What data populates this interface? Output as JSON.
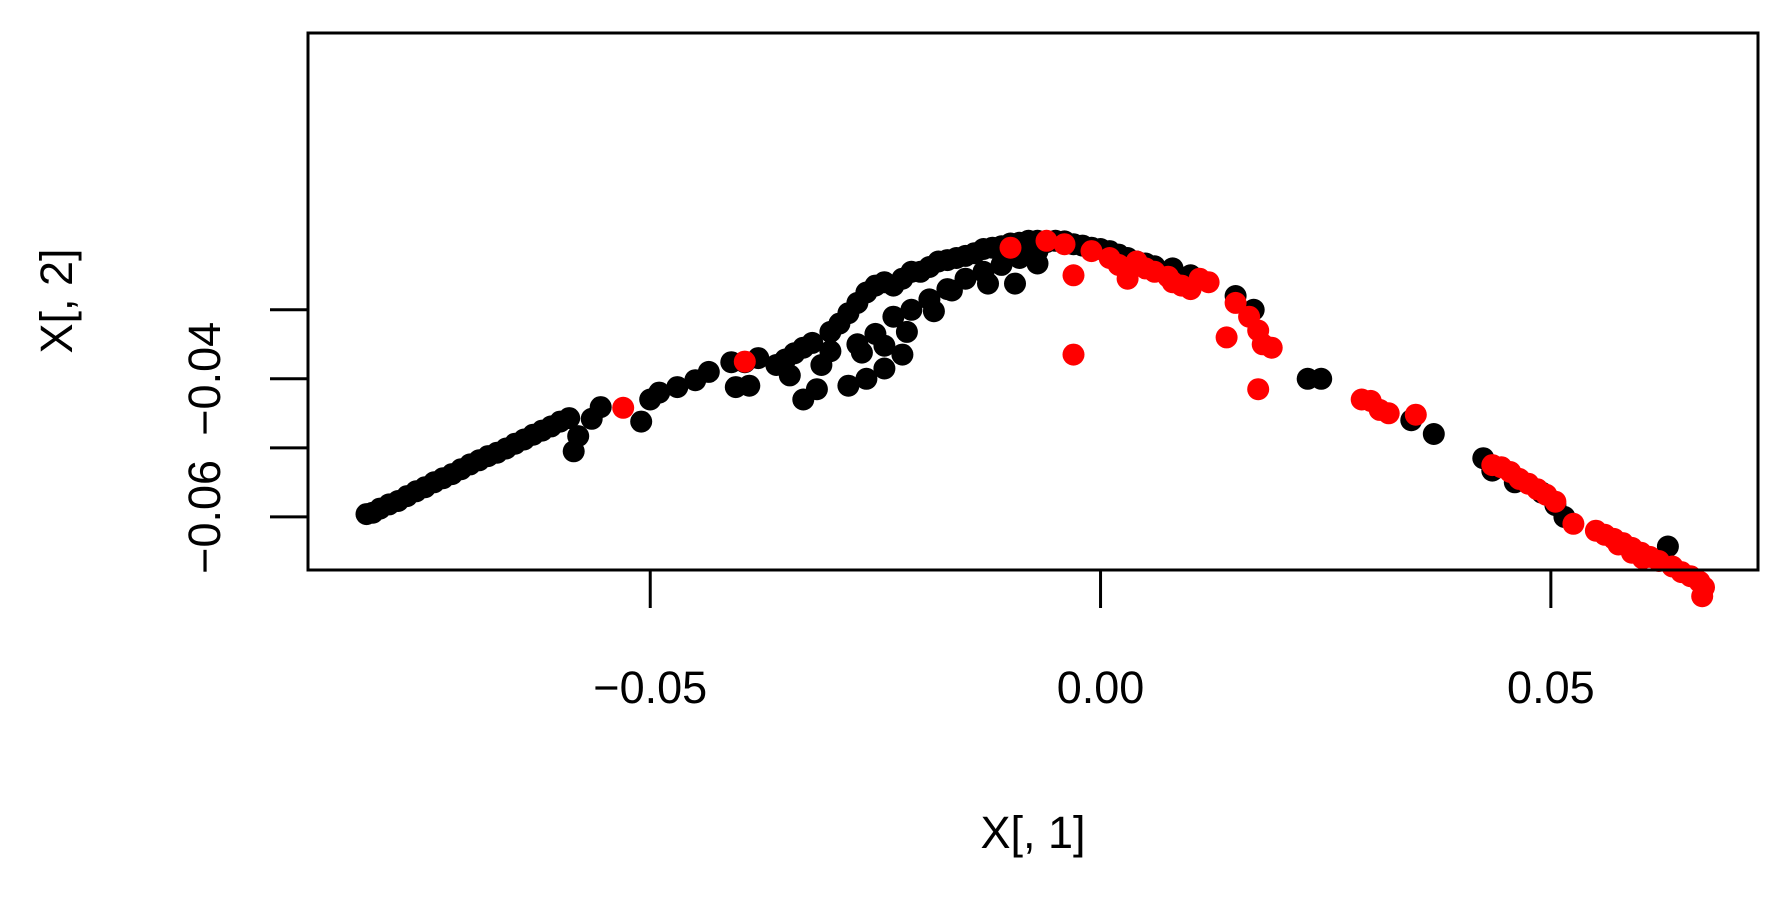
{
  "chart_data": {
    "type": "scatter",
    "title": "",
    "xlabel": "X[, 1]",
    "ylabel": "X[, 2]",
    "xlim": [
      -0.088,
      0.073
    ],
    "ylim": [
      -0.0677,
      0.0101
    ],
    "x_ticks": [
      {
        "value": -0.05,
        "label": "−0.05"
      },
      {
        "value": 0.0,
        "label": "0.00"
      },
      {
        "value": 0.05,
        "label": "0.05"
      }
    ],
    "y_ticks": [
      {
        "value": -0.06,
        "label": "−0.06"
      },
      {
        "value": -0.05,
        "label": ""
      },
      {
        "value": -0.04,
        "label": "−0.04"
      },
      {
        "value": -0.03,
        "label": ""
      }
    ],
    "grid": false,
    "legend": "none",
    "series": [
      {
        "color": "#000000",
        "points": [
          [
            -0.0815,
            -0.0596
          ],
          [
            -0.0808,
            -0.0594
          ],
          [
            -0.08,
            -0.0588
          ],
          [
            -0.079,
            -0.0582
          ],
          [
            -0.078,
            -0.0577
          ],
          [
            -0.077,
            -0.057
          ],
          [
            -0.076,
            -0.0563
          ],
          [
            -0.075,
            -0.0557
          ],
          [
            -0.074,
            -0.055
          ],
          [
            -0.073,
            -0.0544
          ],
          [
            -0.072,
            -0.0538
          ],
          [
            -0.071,
            -0.0531
          ],
          [
            -0.07,
            -0.0524
          ],
          [
            -0.069,
            -0.0518
          ],
          [
            -0.068,
            -0.0512
          ],
          [
            -0.067,
            -0.0507
          ],
          [
            -0.066,
            -0.0501
          ],
          [
            -0.065,
            -0.0494
          ],
          [
            -0.064,
            -0.0488
          ],
          [
            -0.063,
            -0.0481
          ],
          [
            -0.062,
            -0.0475
          ],
          [
            -0.061,
            -0.0469
          ],
          [
            -0.06,
            -0.0462
          ],
          [
            -0.059,
            -0.0457
          ],
          [
            -0.0585,
            -0.0505
          ],
          [
            -0.058,
            -0.0483
          ],
          [
            -0.0565,
            -0.0458
          ],
          [
            -0.0555,
            -0.0441
          ],
          [
            -0.051,
            -0.0462
          ],
          [
            -0.05,
            -0.043
          ],
          [
            -0.049,
            -0.042
          ],
          [
            -0.047,
            -0.0412
          ],
          [
            -0.045,
            -0.0402
          ],
          [
            -0.0435,
            -0.039
          ],
          [
            -0.041,
            -0.0376
          ],
          [
            -0.0405,
            -0.0412
          ],
          [
            -0.0395,
            -0.0376
          ],
          [
            -0.038,
            -0.037
          ],
          [
            -0.035,
            -0.0372
          ],
          [
            -0.034,
            -0.0363
          ],
          [
            -0.033,
            -0.0355
          ],
          [
            -0.032,
            -0.0348
          ],
          [
            -0.03,
            -0.0332
          ],
          [
            -0.029,
            -0.032
          ],
          [
            -0.028,
            -0.0305
          ],
          [
            -0.027,
            -0.029
          ],
          [
            -0.026,
            -0.0275
          ],
          [
            -0.025,
            -0.0265
          ],
          [
            -0.024,
            -0.026
          ],
          [
            -0.023,
            -0.0265
          ],
          [
            -0.022,
            -0.0255
          ],
          [
            -0.021,
            -0.0245
          ],
          [
            -0.02,
            -0.0245
          ],
          [
            -0.019,
            -0.0238
          ],
          [
            -0.018,
            -0.023
          ],
          [
            -0.017,
            -0.0228
          ],
          [
            -0.016,
            -0.0225
          ],
          [
            -0.015,
            -0.0222
          ],
          [
            -0.014,
            -0.0218
          ],
          [
            -0.013,
            -0.0212
          ],
          [
            -0.012,
            -0.021
          ],
          [
            -0.011,
            -0.0208
          ],
          [
            -0.01,
            -0.0204
          ],
          [
            -0.009,
            -0.0203
          ],
          [
            -0.008,
            -0.02
          ],
          [
            -0.007,
            -0.02
          ],
          [
            -0.006,
            -0.0202
          ],
          [
            -0.005,
            -0.02
          ],
          [
            -0.004,
            -0.0201
          ],
          [
            -0.003,
            -0.0205
          ],
          [
            -0.002,
            -0.0207
          ],
          [
            -0.001,
            -0.021
          ],
          [
            0.0,
            -0.0212
          ],
          [
            0.001,
            -0.0215
          ],
          [
            0.002,
            -0.022
          ],
          [
            0.003,
            -0.0225
          ],
          [
            0.004,
            -0.023
          ],
          [
            0.005,
            -0.0233
          ],
          [
            0.006,
            -0.0237
          ],
          [
            0.008,
            -0.024
          ],
          [
            0.01,
            -0.025
          ],
          [
            0.015,
            -0.028
          ],
          [
            0.017,
            -0.03
          ],
          [
            0.023,
            -0.04
          ],
          [
            0.0245,
            -0.04
          ],
          [
            0.0345,
            -0.046
          ],
          [
            0.037,
            -0.048
          ],
          [
            0.0425,
            -0.0515
          ],
          [
            0.0435,
            -0.0533
          ],
          [
            0.046,
            -0.055
          ],
          [
            0.049,
            -0.0565
          ],
          [
            0.0505,
            -0.0583
          ],
          [
            0.0515,
            -0.06
          ],
          [
            0.063,
            -0.0643
          ],
          [
            -0.039,
            -0.041
          ],
          [
            -0.036,
            -0.038
          ],
          [
            -0.0345,
            -0.0395
          ],
          [
            -0.031,
            -0.038
          ],
          [
            -0.033,
            -0.043
          ],
          [
            -0.0315,
            -0.0415
          ],
          [
            -0.028,
            -0.041
          ],
          [
            -0.026,
            -0.04
          ],
          [
            -0.024,
            -0.0385
          ],
          [
            -0.022,
            -0.0365
          ],
          [
            -0.03,
            -0.036
          ],
          [
            -0.027,
            -0.035
          ],
          [
            -0.025,
            -0.0335
          ],
          [
            -0.023,
            -0.031
          ],
          [
            -0.021,
            -0.03
          ],
          [
            -0.019,
            -0.0285
          ],
          [
            -0.017,
            -0.027
          ],
          [
            -0.015,
            -0.0255
          ],
          [
            -0.013,
            -0.0245
          ],
          [
            -0.011,
            -0.0235
          ],
          [
            -0.009,
            -0.0225
          ],
          [
            -0.007,
            -0.0215
          ],
          [
            -0.007,
            -0.0233
          ],
          [
            -0.0095,
            -0.0262
          ],
          [
            -0.0125,
            -0.0262
          ],
          [
            -0.0165,
            -0.0272
          ],
          [
            -0.0185,
            -0.0302
          ],
          [
            -0.0215,
            -0.0332
          ],
          [
            -0.024,
            -0.0352
          ],
          [
            -0.0265,
            -0.0362
          ]
        ]
      },
      {
        "color": "#ff0000",
        "points": [
          [
            -0.053,
            -0.0442
          ],
          [
            -0.0395,
            -0.0375
          ],
          [
            -0.01,
            -0.021
          ],
          [
            -0.006,
            -0.02
          ],
          [
            -0.004,
            -0.0205
          ],
          [
            -0.003,
            -0.025
          ],
          [
            -0.003,
            -0.0365
          ],
          [
            -0.001,
            -0.0215
          ],
          [
            0.001,
            -0.0225
          ],
          [
            0.002,
            -0.0235
          ],
          [
            0.003,
            -0.0255
          ],
          [
            0.004,
            -0.023
          ],
          [
            0.005,
            -0.024
          ],
          [
            0.006,
            -0.0245
          ],
          [
            0.0075,
            -0.0252
          ],
          [
            0.008,
            -0.026
          ],
          [
            0.009,
            -0.0265
          ],
          [
            0.01,
            -0.027
          ],
          [
            0.011,
            -0.0255
          ],
          [
            0.012,
            -0.026
          ],
          [
            0.015,
            -0.029
          ],
          [
            0.0165,
            -0.031
          ],
          [
            0.0175,
            -0.033
          ],
          [
            0.018,
            -0.035
          ],
          [
            0.019,
            -0.0355
          ],
          [
            0.014,
            -0.034
          ],
          [
            0.0175,
            -0.0415
          ],
          [
            0.029,
            -0.043
          ],
          [
            0.03,
            -0.0432
          ],
          [
            0.031,
            -0.0445
          ],
          [
            0.032,
            -0.045
          ],
          [
            0.035,
            -0.0452
          ],
          [
            0.0435,
            -0.0525
          ],
          [
            0.0445,
            -0.0528
          ],
          [
            0.0455,
            -0.0535
          ],
          [
            0.0465,
            -0.0545
          ],
          [
            0.0475,
            -0.0552
          ],
          [
            0.0485,
            -0.056
          ],
          [
            0.0495,
            -0.0568
          ],
          [
            0.0505,
            -0.0578
          ],
          [
            0.0525,
            -0.061
          ],
          [
            0.055,
            -0.062
          ],
          [
            0.056,
            -0.0626
          ],
          [
            0.057,
            -0.0632
          ],
          [
            0.058,
            -0.0638
          ],
          [
            0.059,
            -0.0645
          ],
          [
            0.06,
            -0.0652
          ],
          [
            0.061,
            -0.0658
          ],
          [
            0.062,
            -0.0664
          ],
          [
            0.0635,
            -0.0672
          ],
          [
            0.0645,
            -0.068
          ],
          [
            0.0655,
            -0.0686
          ],
          [
            0.0665,
            -0.0694
          ],
          [
            0.067,
            -0.0702
          ],
          [
            0.0668,
            -0.0715
          ],
          [
            0.0575,
            -0.064
          ],
          [
            0.059,
            -0.0652
          ],
          [
            0.0602,
            -0.066
          ]
        ]
      }
    ]
  }
}
